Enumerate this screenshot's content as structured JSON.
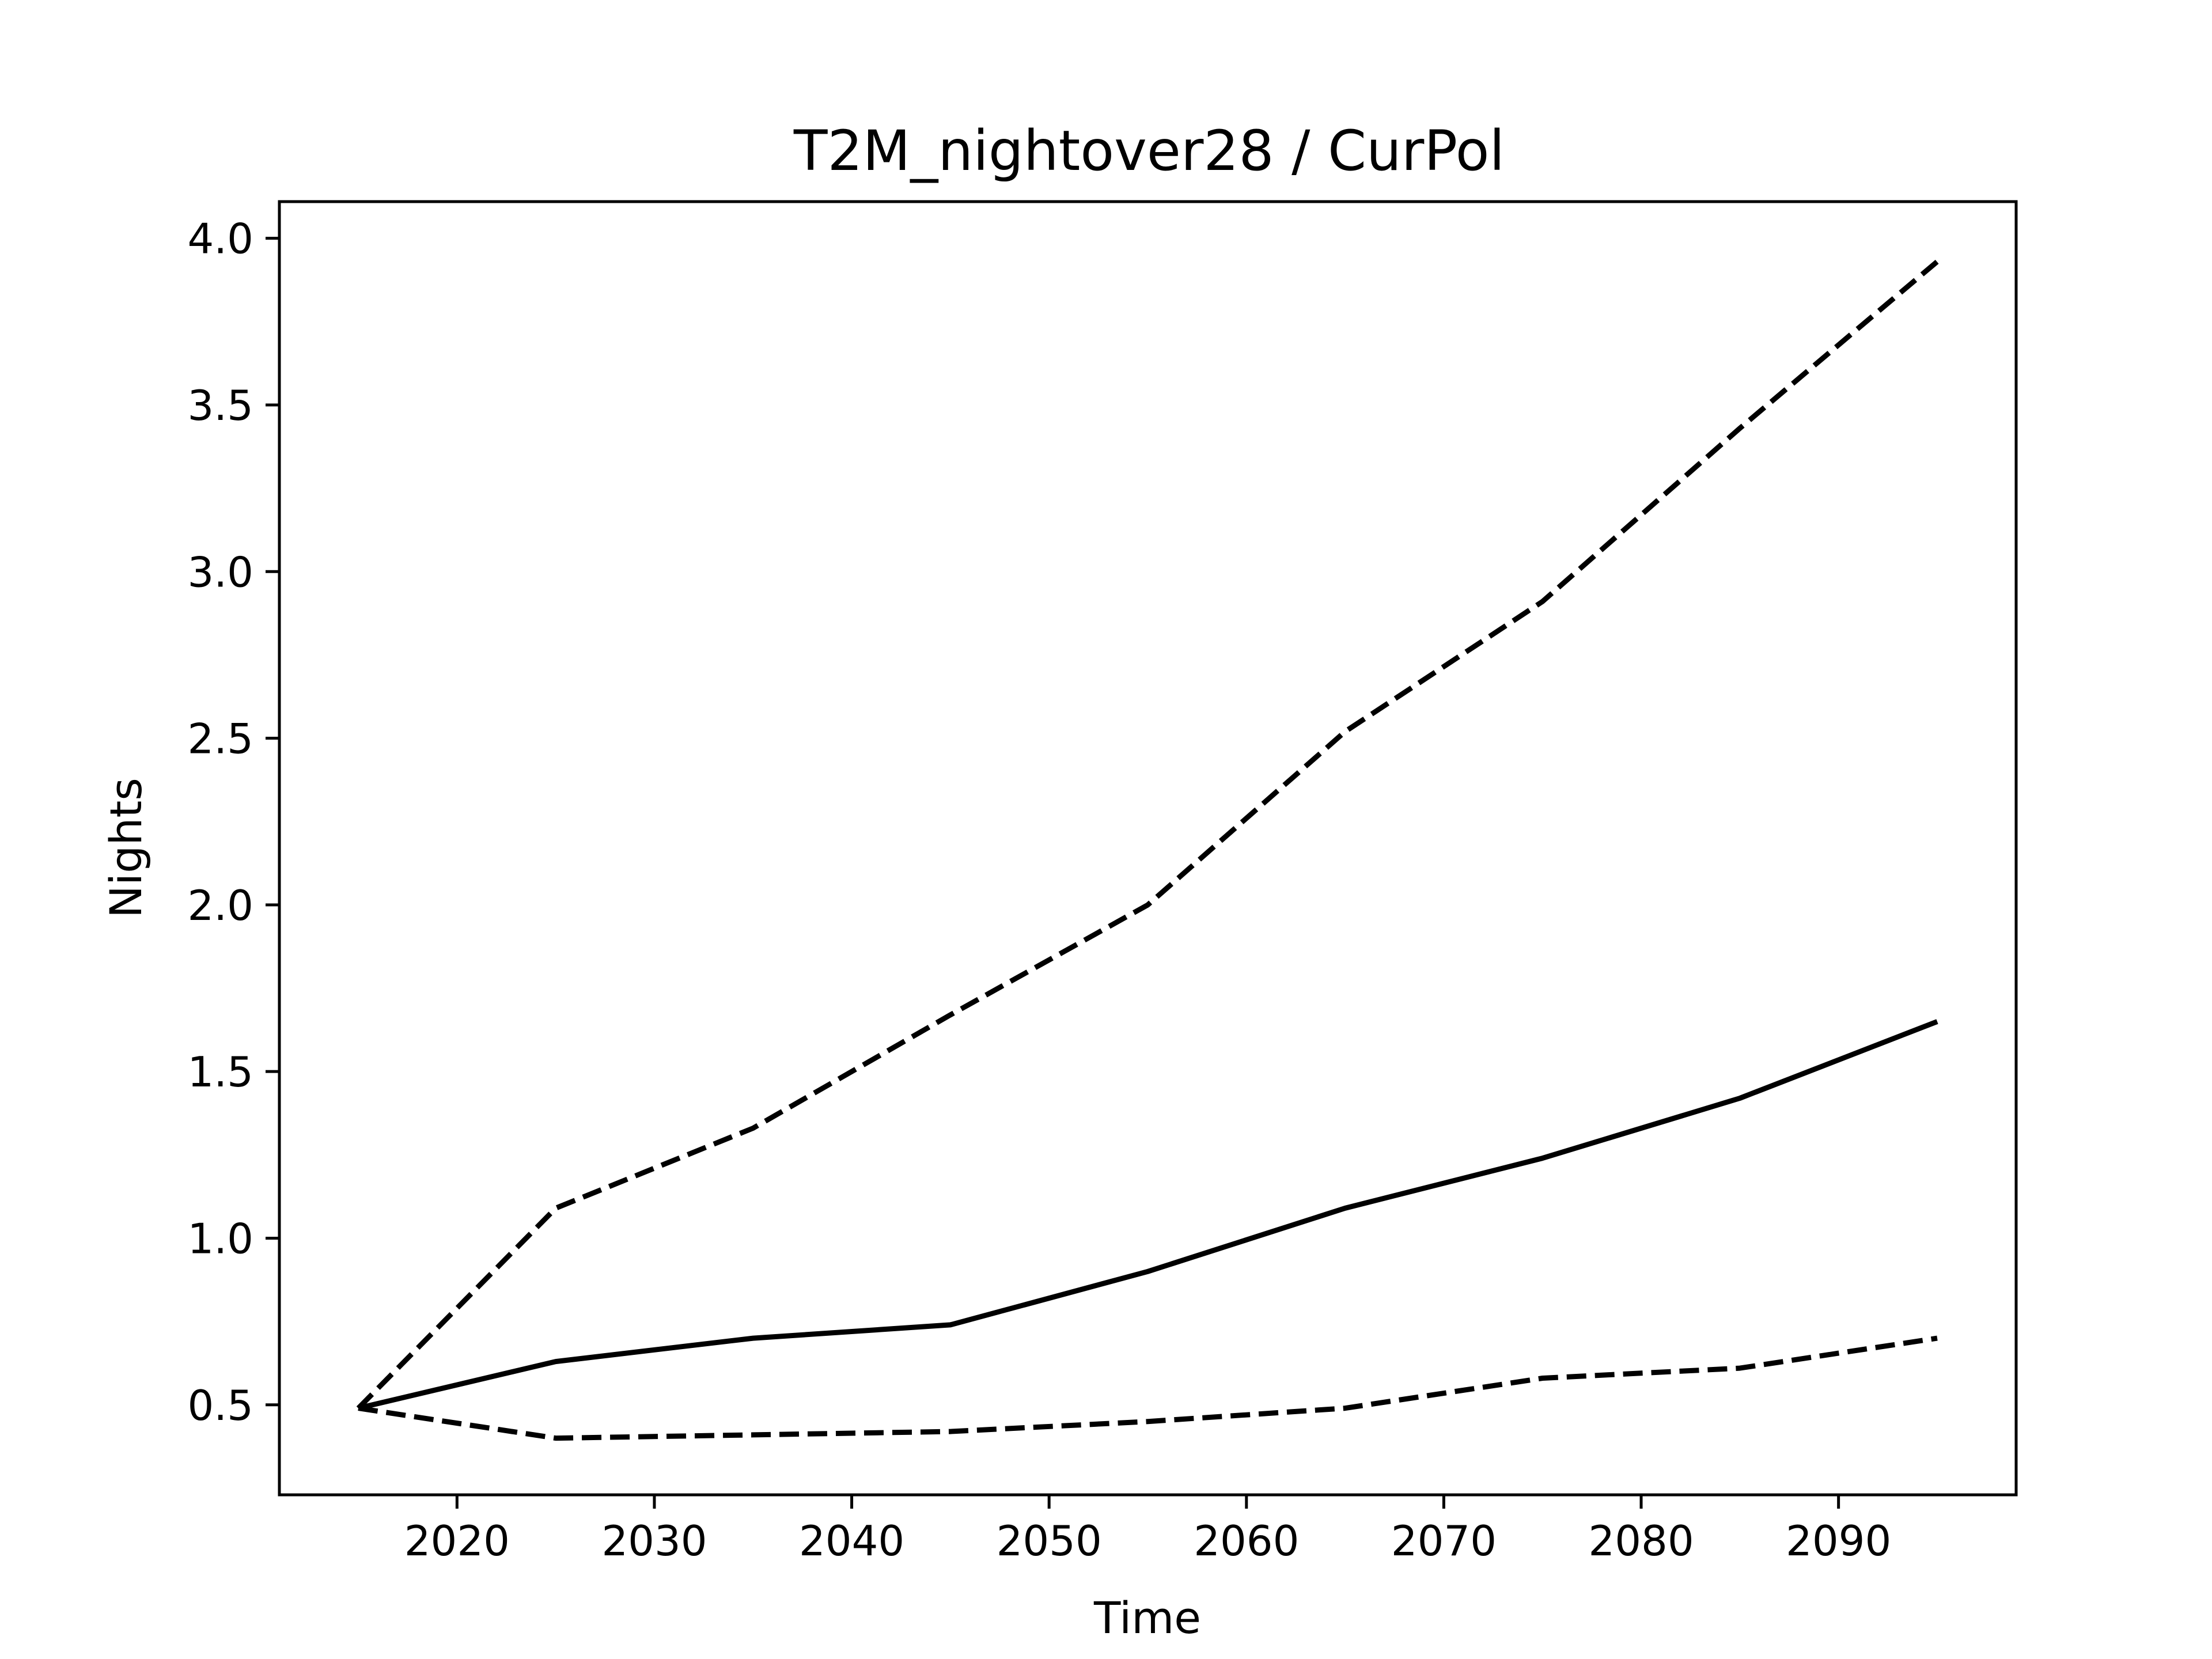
{
  "chart_data": {
    "type": "line",
    "title": "T2M_nightover28 / CurPol",
    "xlabel": "Time",
    "ylabel": "Nights",
    "xlim": [
      2011,
      2099
    ],
    "ylim": [
      0.23,
      4.11
    ],
    "xticks": [
      2020,
      2030,
      2040,
      2050,
      2060,
      2070,
      2080,
      2090
    ],
    "yticks": [
      "0.5",
      "1.0",
      "1.5",
      "2.0",
      "2.5",
      "3.0",
      "3.5",
      "4.0"
    ],
    "grid": false,
    "legend": "none",
    "x": [
      2015,
      2025,
      2035,
      2045,
      2055,
      2065,
      2075,
      2085,
      2095
    ],
    "series": [
      {
        "style": "dashed",
        "color": "#000000",
        "values": [
          0.49,
          1.09,
          1.33,
          1.67,
          2.0,
          2.52,
          2.91,
          3.43,
          3.93
        ]
      },
      {
        "style": "solid",
        "color": "#000000",
        "values": [
          0.49,
          0.63,
          0.7,
          0.74,
          0.9,
          1.09,
          1.24,
          1.42,
          1.65
        ]
      },
      {
        "style": "dashed",
        "color": "#000000",
        "values": [
          0.49,
          0.4,
          0.41,
          0.42,
          0.45,
          0.49,
          0.58,
          0.61,
          0.7
        ]
      }
    ]
  }
}
